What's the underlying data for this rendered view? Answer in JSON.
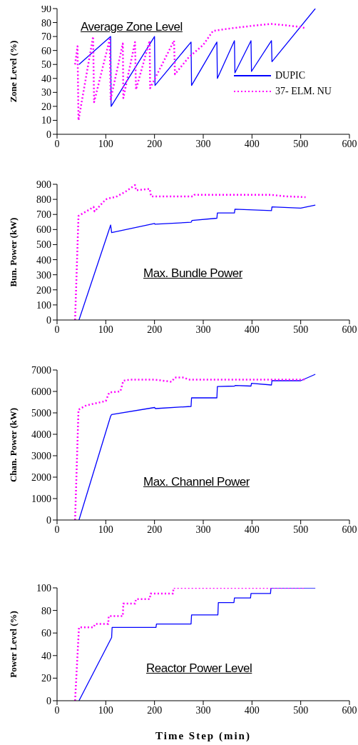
{
  "chart_data": [
    {
      "type": "line",
      "title": "Average Zone Level",
      "ylabel": "Zone Level (%)",
      "xlim": [
        0,
        600
      ],
      "xticks": [
        0,
        100,
        200,
        300,
        400,
        500,
        600
      ],
      "ylim": [
        0,
        90
      ],
      "yticks": [
        0,
        10,
        20,
        30,
        40,
        50,
        60,
        70,
        80,
        90
      ],
      "legend": "right",
      "marker": "none",
      "series": [
        {
          "name": "DUPIC",
          "color": "#0000ff",
          "line_style": "solid",
          "x": [
            45,
            110,
            111,
            200,
            201,
            275,
            276,
            328,
            329,
            364,
            365,
            398,
            399,
            440,
            441,
            530
          ],
          "values": [
            50,
            70,
            20,
            70,
            35,
            66,
            35,
            66,
            40,
            67,
            44,
            67,
            45,
            67,
            52,
            90
          ]
        },
        {
          "name": "37- ELM. NU",
          "color": "#ff00ff",
          "line_style": "dotted",
          "x": [
            37,
            42,
            44,
            74,
            76,
            108,
            110,
            135,
            136,
            160,
            162,
            190,
            191,
            240,
            242,
            270,
            300,
            320,
            360,
            410,
            440,
            470,
            495,
            510
          ],
          "values": [
            50,
            63,
            10,
            70,
            23,
            68,
            25,
            65,
            26,
            66,
            32,
            67,
            33,
            67,
            43,
            55,
            64,
            74,
            76,
            78,
            79,
            78,
            77,
            76
          ]
        }
      ]
    },
    {
      "type": "line",
      "title": "Max. Bundle Power",
      "ylabel": "Bun. Power (kW)",
      "xlim": [
        0,
        600
      ],
      "xticks": [
        0,
        100,
        200,
        300,
        400,
        500,
        600
      ],
      "ylim": [
        0,
        900
      ],
      "yticks": [
        0,
        100,
        200,
        300,
        400,
        500,
        600,
        700,
        800,
        900
      ],
      "marker": "none",
      "series": [
        {
          "color": "#0000ff",
          "line_style": "solid",
          "x": [
            45,
            110,
            112,
            200,
            201,
            275,
            277,
            328,
            329,
            364,
            365,
            440,
            441,
            500,
            530
          ],
          "values": [
            0,
            630,
            580,
            640,
            635,
            648,
            660,
            675,
            710,
            710,
            735,
            725,
            750,
            742,
            762
          ]
        },
        {
          "color": "#ff00ff",
          "line_style": "dotted",
          "x": [
            37,
            44,
            60,
            75,
            77,
            100,
            110,
            120,
            140,
            160,
            162,
            190,
            193,
            280,
            282,
            440,
            470,
            510
          ],
          "values": [
            0,
            690,
            720,
            750,
            720,
            800,
            810,
            815,
            850,
            895,
            860,
            870,
            820,
            820,
            830,
            830,
            820,
            815
          ]
        }
      ]
    },
    {
      "type": "line",
      "title": "Max. Channel Power",
      "ylabel": "Chan. Power (kW)",
      "xlim": [
        0,
        600
      ],
      "xticks": [
        0,
        100,
        200,
        300,
        400,
        500,
        600
      ],
      "ylim": [
        0,
        7000
      ],
      "yticks": [
        0,
        1000,
        2000,
        3000,
        4000,
        5000,
        6000,
        7000
      ],
      "marker": "none",
      "series": [
        {
          "color": "#0000ff",
          "line_style": "solid",
          "x": [
            45,
            110,
            112,
            200,
            202,
            275,
            276,
            328,
            329,
            364,
            366,
            398,
            399,
            440,
            441,
            500,
            530
          ],
          "values": [
            0,
            4850,
            4920,
            5250,
            5200,
            5300,
            5700,
            5700,
            6230,
            6250,
            6280,
            6250,
            6380,
            6300,
            6500,
            6500,
            6800
          ]
        },
        {
          "color": "#ff00ff",
          "line_style": "dotted",
          "x": [
            37,
            44,
            60,
            80,
            100,
            107,
            130,
            136,
            150,
            200,
            235,
            242,
            260,
            270,
            500,
            510
          ],
          "values": [
            0,
            5150,
            5350,
            5450,
            5550,
            5950,
            6000,
            6500,
            6550,
            6550,
            6450,
            6650,
            6650,
            6550,
            6550,
            6560
          ]
        }
      ]
    },
    {
      "type": "line",
      "title": "Reactor Power Level",
      "xlabel": "Time Step (min)",
      "ylabel": "Power Level (%)",
      "xlim": [
        0,
        600
      ],
      "xticks": [
        0,
        100,
        200,
        300,
        400,
        500,
        600
      ],
      "ylim": [
        0,
        100
      ],
      "yticks": [
        0,
        20,
        40,
        60,
        80,
        100
      ],
      "marker": "none",
      "series": [
        {
          "color": "#0000ff",
          "line_style": "solid",
          "x": [
            45,
            112,
            113,
            203,
            204,
            275,
            276,
            330,
            331,
            363,
            364,
            397,
            398,
            438,
            439,
            530
          ],
          "values": [
            0,
            56,
            65,
            65,
            68,
            68,
            76,
            76,
            87,
            87,
            91,
            91,
            95,
            95,
            100,
            100
          ]
        },
        {
          "color": "#ff00ff",
          "line_style": "dotted",
          "x": [
            37,
            45,
            75,
            78,
            105,
            106,
            135,
            136,
            160,
            162,
            190,
            192,
            238,
            239,
            510
          ],
          "values": [
            0,
            65,
            65,
            68,
            68,
            75,
            75,
            86,
            86,
            90,
            90,
            95,
            95,
            100,
            100
          ]
        }
      ]
    }
  ]
}
